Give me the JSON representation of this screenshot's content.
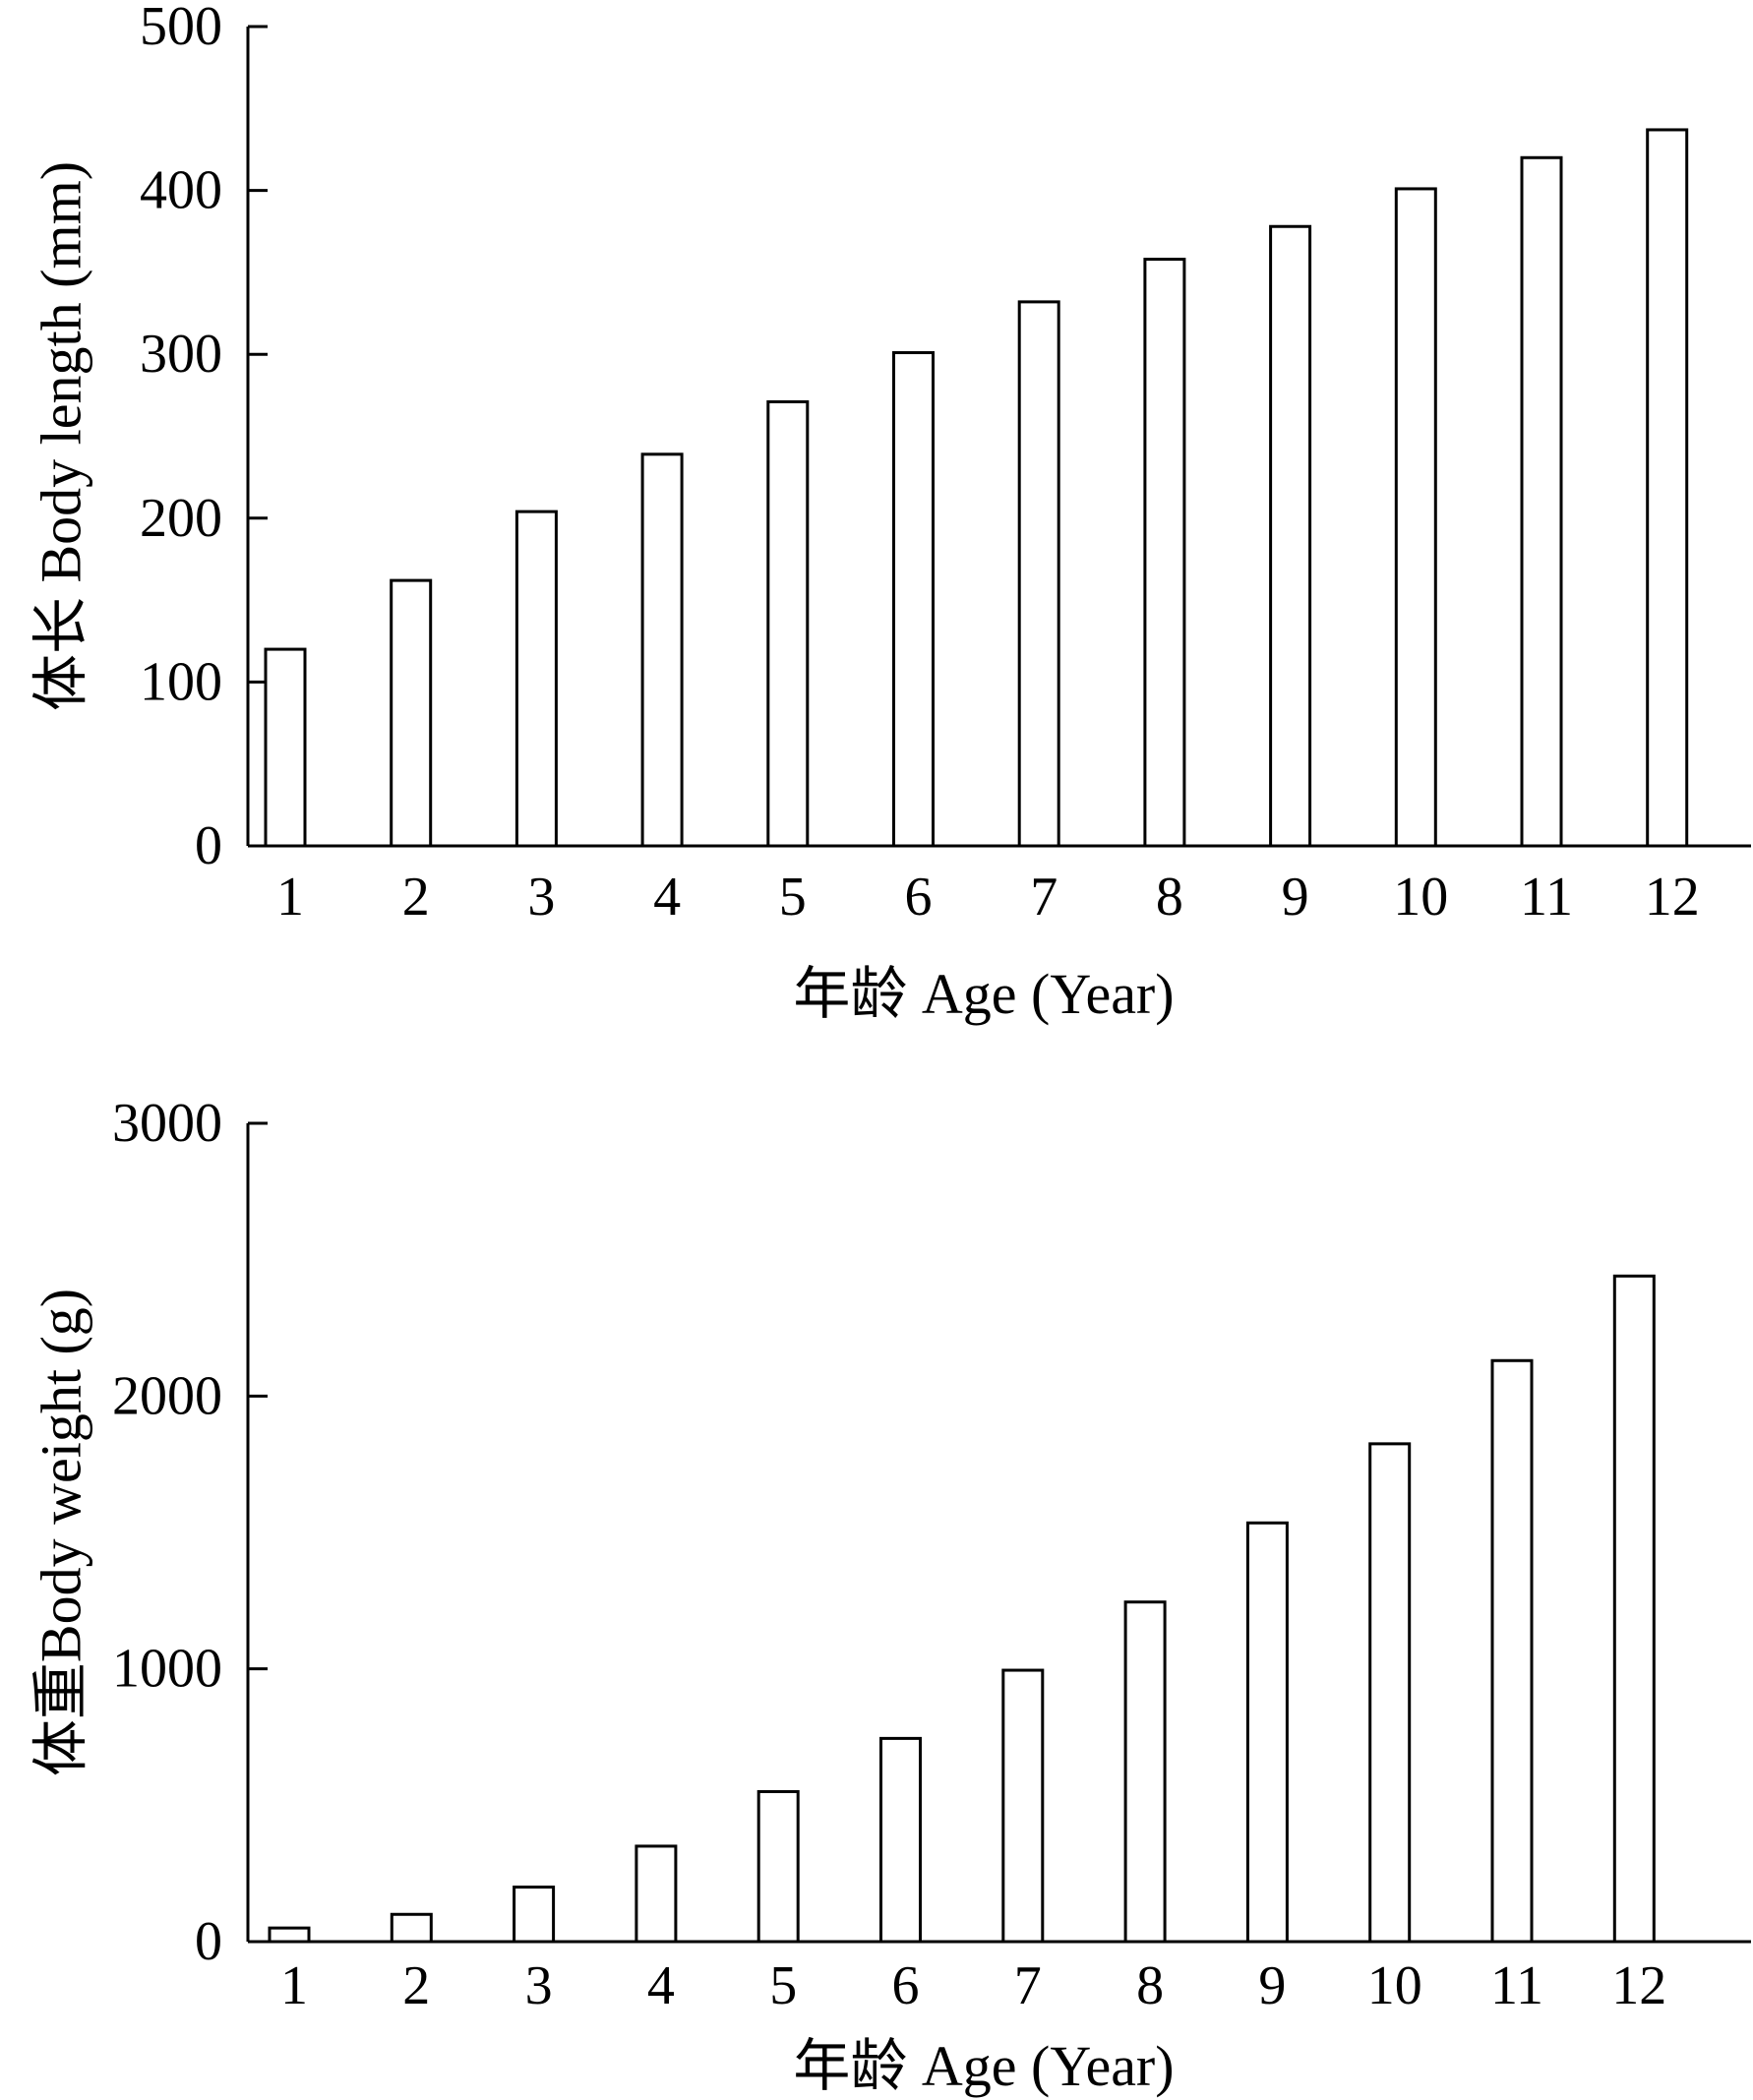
{
  "chart_data": [
    {
      "type": "bar",
      "categories": [
        "1",
        "2",
        "3",
        "4",
        "5",
        "6",
        "7",
        "8",
        "9",
        "10",
        "11",
        "12"
      ],
      "values": [
        120,
        162,
        204,
        239,
        271,
        301,
        332,
        358,
        378,
        401,
        420,
        437
      ],
      "title": "",
      "xlabel": "年龄 Age (Year)",
      "ylabel": "体长 Body length (mm)",
      "ylim": [
        0,
        500
      ],
      "yticks": [
        0,
        100,
        200,
        300,
        400,
        500
      ],
      "grid": false,
      "colors": {
        "bar_fill": "#ffffff",
        "bar_stroke": "#000000"
      }
    },
    {
      "type": "bar",
      "categories": [
        "1",
        "2",
        "3",
        "4",
        "5",
        "6",
        "7",
        "8",
        "9",
        "10",
        "11",
        "12"
      ],
      "values": [
        50,
        100,
        200,
        350,
        550,
        745,
        995,
        1245,
        1535,
        1825,
        2130,
        2440
      ],
      "title": "",
      "xlabel": "年龄 Age (Year)",
      "ylabel": "体重Body weight (g)",
      "ylim": [
        0,
        3000
      ],
      "yticks": [
        0,
        1000,
        2000,
        3000
      ],
      "grid": false,
      "colors": {
        "bar_fill": "#ffffff",
        "bar_stroke": "#000000"
      }
    }
  ]
}
